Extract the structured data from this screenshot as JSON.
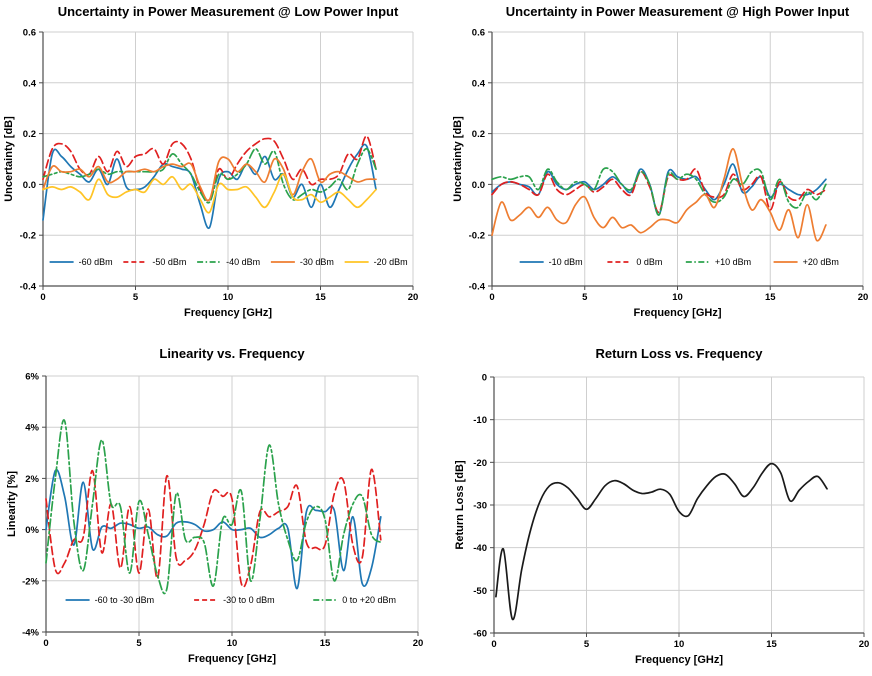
{
  "chart_data": [
    {
      "type": "line",
      "title": "Uncertainty in Power Measurement @ Low Power Input",
      "xlabel": "Frequency [GHz]",
      "ylabel": "Uncertainty [dB]",
      "xlim": [
        0,
        20
      ],
      "ylim": [
        -0.4,
        0.6
      ],
      "xtick_values": [
        0,
        5,
        10,
        15,
        20
      ],
      "xtick_labels": [
        "0",
        "5",
        "10",
        "15",
        "20"
      ],
      "ytick_values": [
        0.6,
        0.4,
        0.2,
        0.0,
        -0.2,
        -0.4
      ],
      "ytick_labels": [
        "0.6",
        "0.4",
        "0.2",
        "0.0",
        "-0.2",
        "-0.4"
      ],
      "grid": true,
      "legend_position": "bottom-inside",
      "x": [
        0,
        0.5,
        1,
        1.5,
        2,
        2.5,
        3,
        3.5,
        4,
        4.5,
        5,
        5.5,
        6,
        6.5,
        7,
        7.5,
        8,
        8.5,
        9,
        9.5,
        10,
        10.5,
        11,
        11.5,
        12,
        12.5,
        13,
        13.5,
        14,
        14.5,
        15,
        15.5,
        16,
        16.5,
        17,
        17.5,
        18
      ],
      "series": [
        {
          "name": "-60 dBm",
          "color": "#1F77B4",
          "style": "solid",
          "values": [
            -0.14,
            0.12,
            0.11,
            0.07,
            0.04,
            0.01,
            0.06,
            0.0,
            0.1,
            -0.01,
            -0.02,
            -0.01,
            0.03,
            0.08,
            0.07,
            0.06,
            0.04,
            -0.08,
            -0.17,
            0.02,
            0.05,
            0.02,
            0.08,
            0.04,
            0.11,
            0.02,
            0.04,
            -0.05,
            0.0,
            -0.09,
            0.0,
            -0.09,
            -0.02,
            0.06,
            0.12,
            0.15,
            -0.02
          ]
        },
        {
          "name": "-50 dBm",
          "color": "#E02020",
          "style": "dashed",
          "values": [
            0.02,
            0.14,
            0.16,
            0.13,
            0.06,
            0.04,
            0.11,
            0.05,
            0.13,
            0.07,
            0.11,
            0.12,
            0.14,
            0.08,
            0.16,
            0.16,
            0.1,
            -0.02,
            -0.06,
            0.06,
            0.02,
            0.08,
            0.13,
            0.16,
            0.18,
            0.17,
            0.1,
            0.02,
            0.06,
            0.0,
            0.02,
            0.02,
            0.04,
            0.12,
            0.1,
            0.19,
            0.06
          ]
        },
        {
          "name": "-40 dBm",
          "color": "#2BA24C",
          "style": "dashdot",
          "values": [
            0.03,
            0.04,
            0.05,
            0.04,
            0.03,
            0.04,
            0.06,
            0.04,
            0.05,
            0.05,
            0.05,
            0.05,
            0.05,
            0.06,
            0.12,
            0.08,
            0.04,
            -0.03,
            -0.07,
            0.04,
            0.02,
            0.04,
            0.08,
            0.14,
            0.08,
            0.13,
            0.0,
            -0.06,
            -0.04,
            -0.02,
            -0.03,
            -0.01,
            0.02,
            -0.02,
            0.08,
            0.14,
            0.06
          ]
        },
        {
          "name": "-30 dBm",
          "color": "#EE7D31",
          "style": "solid",
          "values": [
            -0.02,
            0.07,
            0.05,
            0.05,
            0.06,
            0.03,
            0.07,
            0.01,
            0.02,
            0.05,
            0.05,
            0.06,
            0.05,
            0.07,
            0.08,
            0.07,
            0.08,
            -0.01,
            -0.06,
            0.09,
            0.1,
            0.05,
            0.08,
            0.05,
            0.01,
            0.1,
            0.06,
            -0.04,
            0.05,
            0.1,
            0.01,
            0.04,
            0.05,
            0.03,
            0.01,
            0.02,
            0.02
          ]
        },
        {
          "name": "-20 dBm",
          "color": "#FFC425",
          "style": "solid",
          "values": [
            -0.02,
            -0.01,
            -0.02,
            -0.01,
            -0.03,
            -0.06,
            0.02,
            -0.04,
            -0.05,
            -0.03,
            -0.02,
            -0.03,
            0.02,
            0.0,
            0.03,
            -0.02,
            0.0,
            -0.06,
            -0.11,
            0.0,
            -0.02,
            -0.02,
            -0.01,
            -0.05,
            -0.09,
            -0.03,
            0.04,
            -0.05,
            -0.06,
            -0.04,
            -0.07,
            -0.05,
            -0.03,
            -0.06,
            -0.09,
            -0.06,
            -0.02
          ]
        }
      ]
    },
    {
      "type": "line",
      "title": "Uncertainty in Power Measurement @ High Power Input",
      "xlabel": "Frequency [GHz]",
      "ylabel": "Uncertainty [dB]",
      "xlim": [
        0,
        20
      ],
      "ylim": [
        -0.4,
        0.6
      ],
      "xtick_values": [
        0,
        5,
        10,
        15,
        20
      ],
      "xtick_labels": [
        "0",
        "5",
        "10",
        "15",
        "20"
      ],
      "ytick_values": [
        0.6,
        0.4,
        0.2,
        0.0,
        -0.2,
        -0.4
      ],
      "ytick_labels": [
        "0.6",
        "0.4",
        "0.2",
        "0.0",
        "-0.2",
        "-0.4"
      ],
      "grid": true,
      "legend_position": "bottom-inside",
      "x": [
        0,
        0.5,
        1,
        1.5,
        2,
        2.5,
        3,
        3.5,
        4,
        4.5,
        5,
        5.5,
        6,
        6.5,
        7,
        7.5,
        8,
        8.5,
        9,
        9.5,
        10,
        10.5,
        11,
        11.5,
        12,
        12.5,
        13,
        13.5,
        14,
        14.5,
        15,
        15.5,
        16,
        16.5,
        17,
        17.5,
        18
      ],
      "series": [
        {
          "name": "-10 dBm",
          "color": "#1F77B4",
          "style": "solid",
          "values": [
            -0.03,
            0.0,
            0.01,
            0.0,
            -0.01,
            -0.04,
            0.05,
            0.0,
            -0.02,
            0.0,
            0.01,
            -0.02,
            0.0,
            0.03,
            0.0,
            -0.03,
            0.06,
            0.0,
            -0.12,
            0.05,
            0.03,
            0.02,
            0.03,
            -0.02,
            -0.06,
            0.0,
            0.08,
            -0.03,
            -0.01,
            0.03,
            -0.05,
            0.0,
            -0.02,
            -0.04,
            -0.04,
            -0.02,
            0.02
          ]
        },
        {
          "name": "0 dBm",
          "color": "#E02020",
          "style": "dashed",
          "values": [
            -0.04,
            0.0,
            0.01,
            0.0,
            -0.02,
            -0.04,
            0.04,
            -0.02,
            -0.04,
            -0.02,
            0.0,
            -0.03,
            -0.01,
            0.02,
            -0.02,
            -0.04,
            0.05,
            -0.01,
            -0.11,
            0.03,
            0.02,
            0.02,
            0.06,
            -0.03,
            -0.05,
            -0.04,
            0.04,
            -0.02,
            0.0,
            0.03,
            -0.1,
            0.01,
            -0.05,
            -0.06,
            -0.02,
            -0.04,
            -0.02
          ]
        },
        {
          "name": "+10 dBm",
          "color": "#2BA24C",
          "style": "dashdot",
          "values": [
            0.02,
            0.03,
            0.02,
            0.03,
            0.03,
            -0.02,
            0.06,
            0.01,
            -0.02,
            0.01,
            0.0,
            -0.02,
            0.06,
            0.05,
            0.0,
            -0.02,
            0.05,
            0.0,
            -0.12,
            0.04,
            0.02,
            0.04,
            0.02,
            -0.04,
            -0.07,
            -0.05,
            0.02,
            0.0,
            0.05,
            0.05,
            -0.06,
            0.02,
            -0.07,
            -0.09,
            -0.03,
            -0.06,
            0.0
          ]
        },
        {
          "name": "+20 dBm",
          "color": "#EE7D31",
          "style": "solid",
          "values": [
            -0.2,
            -0.07,
            -0.14,
            -0.12,
            -0.09,
            -0.13,
            -0.09,
            -0.14,
            -0.15,
            -0.08,
            -0.05,
            -0.13,
            -0.17,
            -0.13,
            -0.17,
            -0.16,
            -0.19,
            -0.17,
            -0.14,
            -0.14,
            -0.15,
            -0.1,
            -0.07,
            -0.04,
            -0.09,
            0.02,
            0.14,
            0.0,
            -0.1,
            -0.06,
            -0.11,
            -0.18,
            -0.1,
            -0.21,
            -0.08,
            -0.22,
            -0.16
          ]
        }
      ]
    },
    {
      "type": "line",
      "title": "Linearity vs. Frequency",
      "xlabel": "Frequency [GHz]",
      "ylabel": "Linearity [%]",
      "xlim": [
        0,
        20
      ],
      "ylim": [
        -4,
        6
      ],
      "xtick_values": [
        0,
        5,
        10,
        15,
        20
      ],
      "xtick_labels": [
        "0",
        "5",
        "10",
        "15",
        "20"
      ],
      "ytick_values": [
        6,
        4,
        2,
        0,
        -2,
        -4
      ],
      "ytick_labels": [
        "6%",
        "4%",
        "2%",
        "0%",
        "-2%",
        "-4%"
      ],
      "grid": true,
      "legend_position": "bottom-inside",
      "x": [
        0,
        0.5,
        1,
        1.5,
        2,
        2.5,
        3,
        3.5,
        4,
        4.5,
        5,
        5.5,
        6,
        6.5,
        7,
        7.5,
        8,
        8.5,
        9,
        9.5,
        10,
        10.5,
        11,
        11.5,
        12,
        12.5,
        13,
        13.5,
        14,
        14.5,
        15,
        15.5,
        16,
        16.5,
        17,
        17.5,
        18
      ],
      "series": [
        {
          "name": "-60 to -30 dBm",
          "color": "#1F77B4",
          "style": "solid",
          "values": [
            0.0,
            2.3,
            1.3,
            -0.6,
            1.85,
            -0.75,
            0.1,
            0.05,
            0.25,
            0.2,
            0.05,
            0.1,
            -0.2,
            -0.25,
            0.25,
            0.3,
            0.2,
            -0.05,
            0.0,
            0.3,
            0.0,
            0.0,
            0.05,
            -0.3,
            -0.2,
            0.05,
            0.05,
            -2.3,
            0.7,
            0.75,
            0.7,
            0.75,
            -1.6,
            0.5,
            -2.1,
            -1.5,
            0.5
          ]
        },
        {
          "name": "-30 to 0 dBm",
          "color": "#E02020",
          "style": "dashed",
          "values": [
            1.2,
            -1.55,
            -1.3,
            -0.4,
            -0.3,
            2.3,
            -0.9,
            1.0,
            -1.5,
            0.9,
            -1.7,
            0.8,
            -1.9,
            2.1,
            -1.1,
            -1.2,
            -0.8,
            0.2,
            1.5,
            1.3,
            1.2,
            -2.1,
            -1.4,
            0.7,
            0.5,
            0.7,
            0.9,
            1.7,
            -0.5,
            -0.7,
            -0.6,
            1.4,
            1.9,
            -0.6,
            -1.1,
            2.35,
            -0.4
          ]
        },
        {
          "name": "0 to +20 dBm",
          "color": "#2BA24C",
          "style": "dashdot",
          "values": [
            -1.3,
            2.0,
            4.25,
            0.3,
            -1.6,
            1.0,
            3.5,
            1.0,
            0.9,
            -1.7,
            1.1,
            -0.2,
            -1.8,
            -2.3,
            1.4,
            -0.4,
            -0.3,
            -0.5,
            -2.2,
            0.4,
            0.2,
            1.5,
            -2.0,
            0.4,
            3.3,
            1.0,
            -0.4,
            -1.2,
            0.3,
            0.9,
            0.4,
            -2.0,
            -0.2,
            1.0,
            1.3,
            -0.2,
            -0.5
          ]
        }
      ]
    },
    {
      "type": "line",
      "title": "Return Loss vs. Frequency",
      "xlabel": "Frequency [GHz]",
      "ylabel": "Return Loss [dB]",
      "xlim": [
        0,
        20
      ],
      "ylim": [
        -60,
        0
      ],
      "xtick_values": [
        0,
        5,
        10,
        15,
        20
      ],
      "xtick_labels": [
        "0",
        "5",
        "10",
        "15",
        "20"
      ],
      "ytick_values": [
        0,
        -10,
        -20,
        -30,
        -40,
        -50,
        -60
      ],
      "ytick_labels": [
        "0",
        "-10",
        "-20",
        "-30",
        "-40",
        "-50",
        "-60"
      ],
      "grid": true,
      "legend_position": "none",
      "x": [
        0.1,
        0.5,
        1,
        1.5,
        2,
        2.5,
        3,
        3.5,
        4,
        4.5,
        5,
        5.5,
        6,
        6.5,
        7,
        7.5,
        8,
        8.5,
        9,
        9.5,
        10,
        10.5,
        11,
        11.5,
        12,
        12.5,
        13,
        13.5,
        14,
        14.5,
        15,
        15.5,
        16,
        16.5,
        17,
        17.5,
        18
      ],
      "series": [
        {
          "name": "Return Loss",
          "color": "#1A1A1A",
          "style": "solid",
          "values": [
            -51.5,
            -40.3,
            -56.8,
            -45,
            -35.5,
            -29,
            -25.5,
            -24.8,
            -26,
            -28.5,
            -31,
            -28.5,
            -25.5,
            -24.3,
            -25,
            -26.5,
            -27.3,
            -27,
            -26.3,
            -27.5,
            -31.5,
            -32.5,
            -28.5,
            -25.5,
            -23.3,
            -22.8,
            -25,
            -28,
            -26,
            -22.5,
            -20.3,
            -22.5,
            -29,
            -26.5,
            -24.5,
            -23.3,
            -26.2
          ]
        }
      ]
    }
  ]
}
